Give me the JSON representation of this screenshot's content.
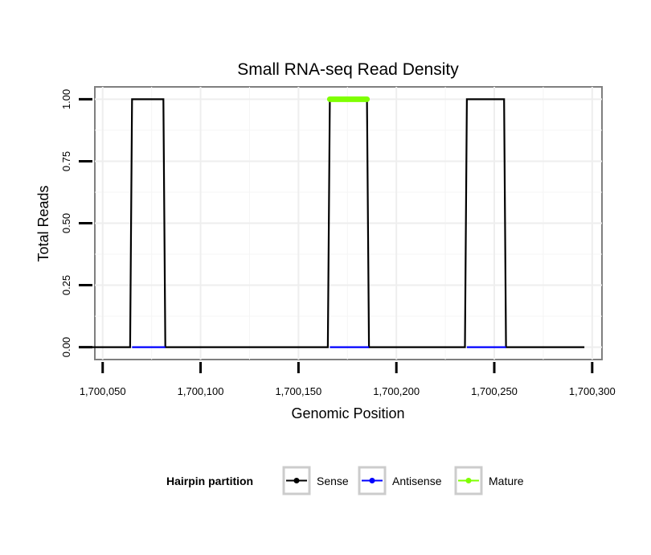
{
  "chart_data": {
    "type": "line",
    "title": "Small RNA-seq Read Density",
    "xlabel": "Genomic Position",
    "ylabel": "Total Reads",
    "xlim": [
      1700046,
      1700305
    ],
    "ylim": [
      -0.05,
      1.05
    ],
    "x_ticks": [
      1700050,
      1700100,
      1700150,
      1700200,
      1700250,
      1700300
    ],
    "x_tick_labels": [
      "1,700,050",
      "1,700,100",
      "1,700,150",
      "1,700,200",
      "1,700,250",
      "1,700,300"
    ],
    "y_ticks": [
      0,
      0.25,
      0.5,
      0.75,
      1.0
    ],
    "y_tick_labels": [
      "0.00",
      "0.25",
      "0.50",
      "0.75",
      "1.00"
    ],
    "grid": true,
    "legend": {
      "title": "Hairpin partition",
      "position": "bottom",
      "entries": [
        {
          "name": "Sense",
          "color": "#000000"
        },
        {
          "name": "Antisense",
          "color": "#0000ff"
        },
        {
          "name": "Mature",
          "color": "#7fff00"
        }
      ]
    },
    "series": [
      {
        "name": "Sense",
        "color": "#000000",
        "x": [
          1700044,
          1700064,
          1700065,
          1700081,
          1700082,
          1700165,
          1700166,
          1700185,
          1700186,
          1700235,
          1700236,
          1700255,
          1700256,
          1700296
        ],
        "y": [
          0,
          0,
          1,
          1,
          0,
          0,
          1,
          1,
          0,
          0,
          1,
          1,
          0,
          0
        ]
      },
      {
        "name": "Antisense",
        "color": "#0000ff",
        "segments": [
          {
            "x": [
              1700065,
              1700082
            ],
            "y": [
              0,
              0
            ]
          },
          {
            "x": [
              1700166,
              1700186
            ],
            "y": [
              0,
              0
            ]
          },
          {
            "x": [
              1700236,
              1700256
            ],
            "y": [
              0,
              0
            ]
          }
        ]
      },
      {
        "name": "Mature",
        "color": "#7fff00",
        "segments": [
          {
            "x": [
              1700166,
              1700185
            ],
            "y": [
              1,
              1
            ]
          }
        ]
      }
    ]
  }
}
